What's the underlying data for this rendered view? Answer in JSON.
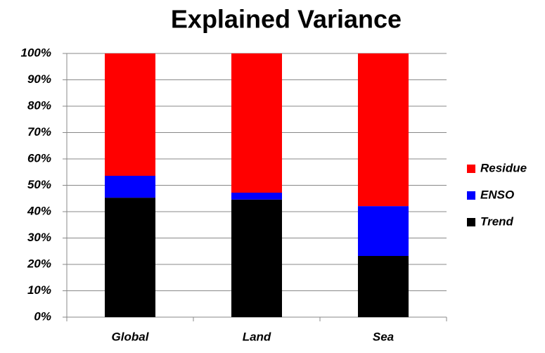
{
  "chart_data": {
    "type": "stacked_bar",
    "title": "Explained Variance",
    "categories": [
      "Global",
      "Land",
      "Sea"
    ],
    "series": [
      {
        "name": "Trend",
        "color": "#000000",
        "values": [
          45.3,
          44.6,
          23.2
        ]
      },
      {
        "name": "ENSO",
        "color": "#0000ff",
        "values": [
          8.3,
          2.6,
          18.9
        ]
      },
      {
        "name": "Residue",
        "color": "#ff0000",
        "values": [
          46.4,
          52.8,
          57.9
        ]
      }
    ],
    "ylim": [
      0,
      100
    ],
    "yticks": [
      {
        "value": 0,
        "label": "0%"
      },
      {
        "value": 10,
        "label": "10%"
      },
      {
        "value": 20,
        "label": "20%"
      },
      {
        "value": 30,
        "label": "30%"
      },
      {
        "value": 40,
        "label": "40%"
      },
      {
        "value": 50,
        "label": "50%"
      },
      {
        "value": 60,
        "label": "60%"
      },
      {
        "value": 70,
        "label": "70%"
      },
      {
        "value": 80,
        "label": "80%"
      },
      {
        "value": 90,
        "label": "90%"
      },
      {
        "value": 100,
        "label": "100%"
      }
    ],
    "grid": true,
    "legend": "right"
  }
}
